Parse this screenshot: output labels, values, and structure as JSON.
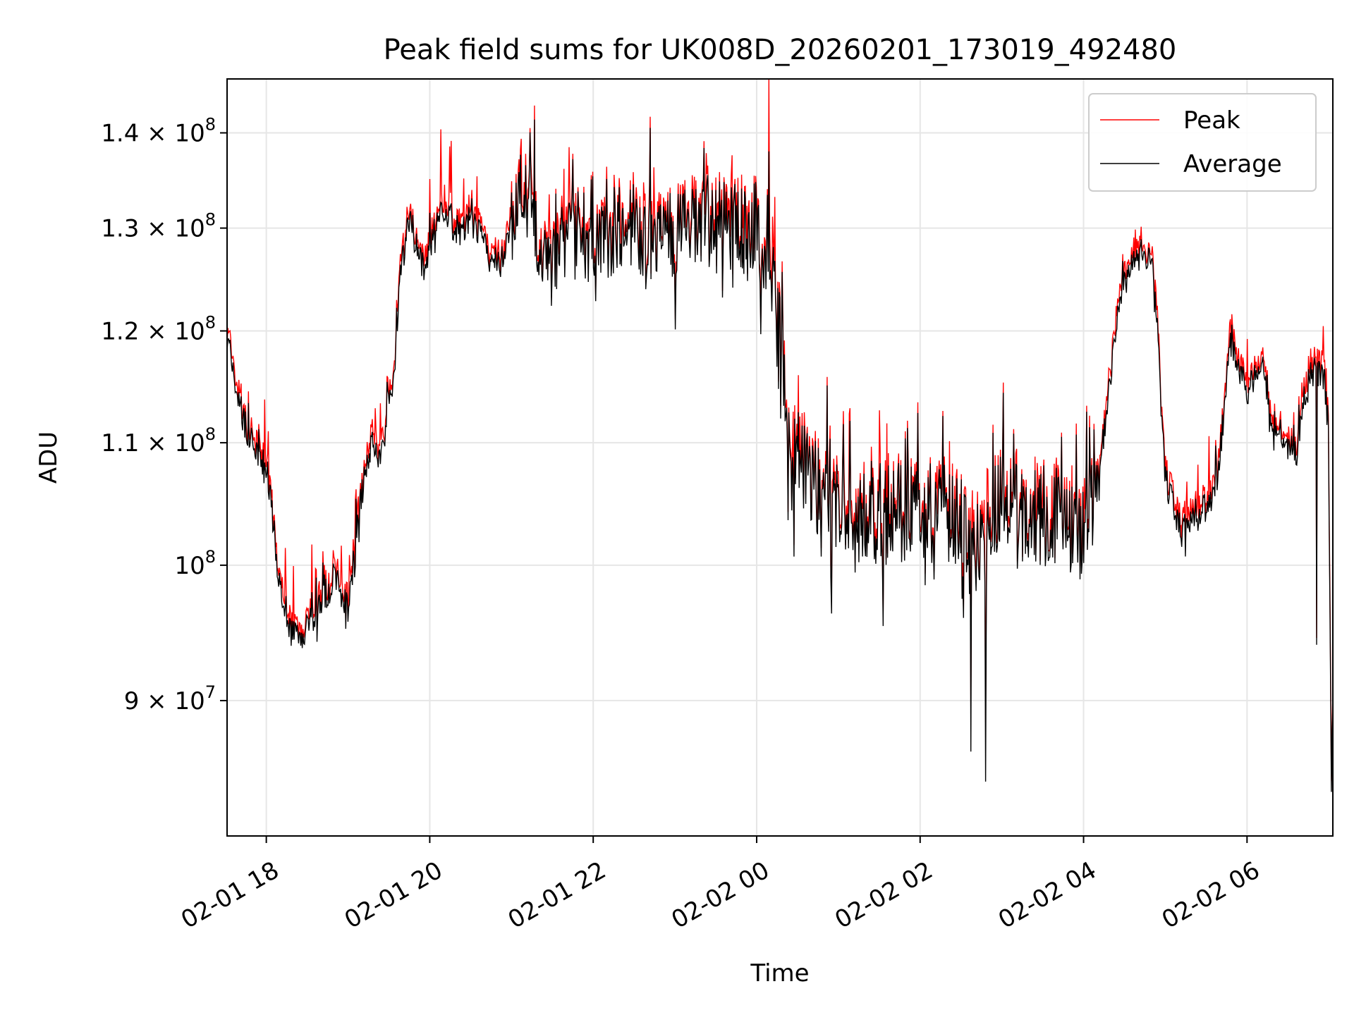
{
  "chart_data": {
    "type": "line",
    "title": "Peak field sums for UK008D_20260201_173019_492480",
    "xlabel": "Time",
    "ylabel": "ADU",
    "yscale": "log",
    "ylim": [
      81000000,
      146000000
    ],
    "xlim_hours": [
      17.52,
      31.05
    ],
    "grid": true,
    "legend_position": "top-right",
    "x_ticks": [
      {
        "hour": 18,
        "label": "02-01 18"
      },
      {
        "hour": 20,
        "label": "02-01 20"
      },
      {
        "hour": 22,
        "label": "02-01 22"
      },
      {
        "hour": 24,
        "label": "02-02 00"
      },
      {
        "hour": 26,
        "label": "02-02 02"
      },
      {
        "hour": 28,
        "label": "02-02 04"
      },
      {
        "hour": 30,
        "label": "02-02 06"
      }
    ],
    "y_ticks": [
      {
        "value": 90000000,
        "label": "9 × 10",
        "exp": "7"
      },
      {
        "value": 100000000,
        "label": "10",
        "exp": "8"
      },
      {
        "value": 110000000,
        "label": "1.1 × 10",
        "exp": "8"
      },
      {
        "value": 120000000,
        "label": "1.2 × 10",
        "exp": "8"
      },
      {
        "value": 130000000,
        "label": "1.3 × 10",
        "exp": "8"
      },
      {
        "value": 140000000,
        "label": "1.4 × 10",
        "exp": "8"
      }
    ],
    "series": [
      {
        "name": "Peak",
        "color": "#ff0000"
      },
      {
        "name": "Average",
        "color": "#000000"
      }
    ],
    "average_keypoints": [
      [
        17.52,
        119500000
      ],
      [
        17.65,
        114000000
      ],
      [
        17.8,
        110000000
      ],
      [
        17.95,
        108500000
      ],
      [
        18.05,
        105500000
      ],
      [
        18.15,
        99000000
      ],
      [
        18.3,
        95000000
      ],
      [
        18.45,
        94500000
      ],
      [
        18.65,
        97000000
      ],
      [
        18.85,
        99000000
      ],
      [
        19.0,
        96500000
      ],
      [
        19.12,
        104000000
      ],
      [
        19.3,
        110500000
      ],
      [
        19.4,
        108500000
      ],
      [
        19.55,
        115500000
      ],
      [
        19.65,
        126000000
      ],
      [
        19.75,
        131000000
      ],
      [
        19.85,
        128500000
      ],
      [
        19.95,
        125000000
      ],
      [
        20.05,
        130500000
      ],
      [
        20.2,
        132000000
      ],
      [
        20.35,
        129000000
      ],
      [
        20.5,
        131000000
      ],
      [
        20.7,
        128000000
      ],
      [
        20.85,
        126000000
      ],
      [
        21.0,
        130000000
      ],
      [
        21.1,
        136500000
      ],
      [
        21.3,
        130000000
      ],
      [
        21.5,
        128000000
      ],
      [
        21.7,
        129500000
      ],
      [
        22.0,
        129000000
      ],
      [
        22.3,
        130000000
      ],
      [
        22.6,
        129500000
      ],
      [
        22.9,
        129000000
      ],
      [
        23.2,
        130000000
      ],
      [
        23.5,
        130500000
      ],
      [
        23.8,
        130000000
      ],
      [
        24.0,
        129000000
      ],
      [
        24.15,
        127000000
      ],
      [
        24.3,
        118000000
      ],
      [
        24.4,
        108500000
      ],
      [
        24.7,
        106000000
      ],
      [
        25.0,
        105000000
      ],
      [
        25.3,
        104500000
      ],
      [
        25.6,
        104000000
      ],
      [
        25.9,
        104500000
      ],
      [
        26.2,
        104000000
      ],
      [
        26.4,
        104500000
      ],
      [
        26.6,
        101500000
      ],
      [
        26.8,
        100500000
      ],
      [
        26.95,
        105000000
      ],
      [
        27.2,
        104500000
      ],
      [
        27.5,
        104000000
      ],
      [
        27.8,
        103500000
      ],
      [
        28.05,
        102500000
      ],
      [
        28.2,
        108000000
      ],
      [
        28.4,
        120500000
      ],
      [
        28.55,
        126000000
      ],
      [
        28.7,
        127500000
      ],
      [
        28.85,
        127000000
      ],
      [
        29.0,
        107000000
      ],
      [
        29.2,
        102500000
      ],
      [
        29.35,
        104000000
      ],
      [
        29.5,
        104500000
      ],
      [
        29.65,
        107500000
      ],
      [
        29.8,
        119000000
      ],
      [
        30.0,
        114500000
      ],
      [
        30.1,
        116000000
      ],
      [
        30.2,
        116500000
      ],
      [
        30.3,
        110500000
      ],
      [
        30.45,
        110000000
      ],
      [
        30.6,
        109000000
      ],
      [
        30.75,
        115500000
      ],
      [
        30.85,
        116500000
      ],
      [
        30.95,
        115500000
      ],
      [
        31.0,
        110000000
      ],
      [
        31.03,
        84000000
      ],
      [
        31.05,
        89500000
      ]
    ],
    "spikes": [
      {
        "hour": 24.15,
        "peak": 146000000,
        "avg": 138000000
      },
      {
        "hour": 26.62,
        "peak": 89500000,
        "avg": 86500000
      },
      {
        "hour": 26.8,
        "peak": 88500000,
        "avg": 84500000
      },
      {
        "hour": 30.85,
        "peak": 94500000,
        "avg": 94000000
      }
    ]
  }
}
